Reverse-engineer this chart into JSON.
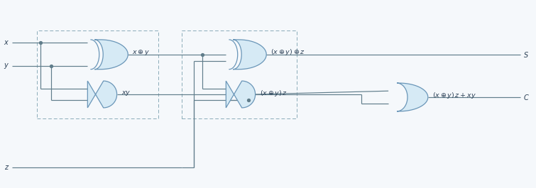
{
  "background_color": "#f5f8fb",
  "gate_fill": "#d6eaf5",
  "gate_edge": "#6a96b8",
  "wire_color": "#607d8b",
  "dash_box_color": "#8aabb8",
  "text_color": "#2a3f55",
  "fig_width": 7.55,
  "fig_height": 2.65,
  "dpi": 100
}
